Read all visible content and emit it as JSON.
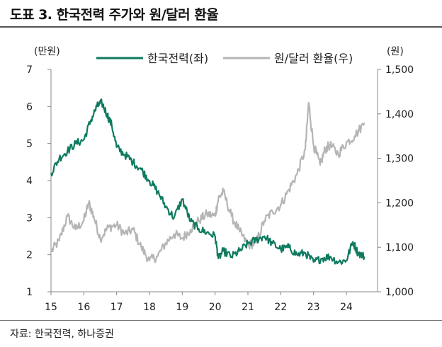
{
  "header": {
    "title": "도표 3. 한국전력 주가와 원/달러 환율"
  },
  "footer": {
    "source": "자료: 한국전력, 하나증권"
  },
  "chart_data": {
    "type": "line",
    "title": "도표 3. 한국전력 주가와 원/달러 환율",
    "xlabel": "",
    "x_ticks": [
      "15",
      "16",
      "17",
      "18",
      "19",
      "20",
      "21",
      "22",
      "23",
      "24"
    ],
    "xlim": [
      15,
      24.95
    ],
    "left_axis": {
      "unit": "(만원)",
      "ylim": [
        1,
        7
      ],
      "ticks": [
        "1",
        "2",
        "3",
        "4",
        "5",
        "6",
        "7"
      ]
    },
    "right_axis": {
      "unit": "(원)",
      "ylim": [
        1000,
        1500
      ],
      "ticks": [
        "1,000",
        "1,100",
        "1,200",
        "1,300",
        "1,400",
        "1,500"
      ]
    },
    "legend": [
      "한국전력(좌)",
      "원/달러 환율(우)"
    ],
    "legend_position": "top",
    "series": [
      {
        "name": "한국전력(좌)",
        "axis": "left",
        "color": "#0e7a5f",
        "x": [
          15.0,
          15.25,
          15.5,
          15.75,
          16.0,
          16.2,
          16.4,
          16.55,
          16.7,
          16.85,
          17.0,
          17.25,
          17.5,
          17.75,
          18.0,
          18.25,
          18.5,
          18.75,
          19.0,
          19.25,
          19.5,
          19.75,
          20.0,
          20.1,
          20.25,
          20.5,
          20.75,
          21.0,
          21.25,
          21.5,
          21.75,
          22.0,
          22.25,
          22.5,
          22.75,
          23.0,
          23.25,
          23.5,
          23.75,
          24.0,
          24.2,
          24.35,
          24.55
        ],
        "values": [
          4.2,
          4.6,
          4.8,
          5.0,
          5.1,
          5.6,
          6.0,
          6.1,
          5.8,
          5.5,
          4.9,
          4.7,
          4.5,
          4.3,
          4.0,
          3.7,
          3.3,
          3.0,
          3.5,
          2.9,
          2.7,
          2.6,
          2.5,
          1.9,
          2.1,
          1.95,
          2.1,
          2.3,
          2.4,
          2.5,
          2.3,
          2.15,
          2.2,
          2.0,
          2.05,
          1.8,
          1.9,
          1.95,
          1.8,
          1.85,
          2.35,
          2.05,
          1.95
        ]
      },
      {
        "name": "원/달러 환율(우)",
        "axis": "right",
        "color": "#b5b5b5",
        "x": [
          15.0,
          15.25,
          15.5,
          15.75,
          16.0,
          16.15,
          16.3,
          16.5,
          16.75,
          17.0,
          17.25,
          17.5,
          17.75,
          18.0,
          18.25,
          18.5,
          18.75,
          19.0,
          19.25,
          19.5,
          19.75,
          20.0,
          20.1,
          20.25,
          20.5,
          20.75,
          21.0,
          21.25,
          21.5,
          21.75,
          22.0,
          22.25,
          22.5,
          22.75,
          22.85,
          23.0,
          23.2,
          23.35,
          23.5,
          23.75,
          24.0,
          24.25,
          24.55
        ],
        "values": [
          1090,
          1115,
          1170,
          1140,
          1160,
          1200,
          1170,
          1120,
          1145,
          1150,
          1130,
          1140,
          1100,
          1070,
          1080,
          1110,
          1130,
          1120,
          1140,
          1160,
          1175,
          1170,
          1210,
          1225,
          1170,
          1135,
          1105,
          1110,
          1160,
          1180,
          1195,
          1230,
          1265,
          1320,
          1425,
          1330,
          1285,
          1320,
          1330,
          1310,
          1335,
          1350,
          1380
        ]
      }
    ]
  }
}
